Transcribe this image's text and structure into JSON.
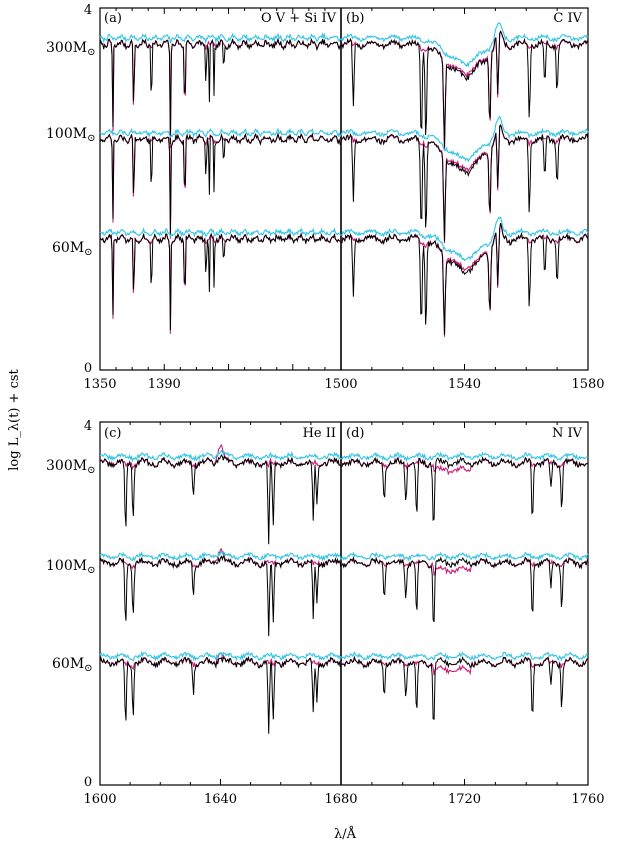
{
  "ylabel": "log L_λ(t) + cst",
  "xlabel": "λ/Å",
  "colors": {
    "black": "#000000",
    "magenta": "#cc1f7a",
    "cyan": "#2ec4e6"
  },
  "rows": [
    {
      "ylim": [
        0,
        4
      ],
      "ytick_top": "4",
      "ytick_bottom": "0",
      "mass_labels": [
        {
          "text": "300M",
          "sym": "⊙",
          "y": 3.55
        },
        {
          "text": "100M",
          "sym": "⊙",
          "y": 2.5
        },
        {
          "text": "60M",
          "sym": "⊙",
          "y": 1.4
        }
      ]
    },
    {
      "ylim": [
        0,
        4
      ],
      "ytick_top": "4",
      "ytick_bottom": "0",
      "mass_labels": [
        {
          "text": "300M",
          "sym": "⊙",
          "y": 3.55
        },
        {
          "text": "100M",
          "sym": "⊙",
          "y": 2.45
        },
        {
          "text": "60M",
          "sym": "⊙",
          "y": 1.35
        }
      ]
    }
  ],
  "chart_data": [
    {
      "type": "line",
      "panel": "a",
      "panel_label": "(a)",
      "ion_label": "O V + Si IV",
      "xlim": [
        1350,
        1500
      ],
      "ylim": [
        0,
        4
      ],
      "xticks": [
        1350,
        1390
      ],
      "xtick_labels": [
        "1350",
        "1390"
      ],
      "levels": [
        3.6,
        2.55,
        1.45
      ],
      "lines": [
        {
          "x": 1358,
          "depth": 0.8,
          "series": "black"
        },
        {
          "x": 1371,
          "depth": 0.85,
          "series": "black"
        },
        {
          "x": 1382,
          "depth": 0.75,
          "series": "black"
        },
        {
          "x": 1393.8,
          "depth": 0.9,
          "series": "black"
        },
        {
          "x": 1402.8,
          "depth": 0.85,
          "series": "black"
        },
        {
          "x": 1416,
          "depth": 0.45,
          "series": "black"
        },
        {
          "x": 1418,
          "depth": 0.6,
          "series": "black"
        },
        {
          "x": 1421,
          "depth": 0.5,
          "series": "black"
        },
        {
          "x": 1427,
          "depth": 0.35,
          "series": "black"
        }
      ],
      "magenta_lines": [
        1358,
        1371,
        1393.8,
        1402.8
      ],
      "series": [
        {
          "name": "black",
          "color": "black"
        },
        {
          "name": "magenta",
          "color": "magenta"
        },
        {
          "name": "cyan",
          "color": "cyan"
        }
      ]
    },
    {
      "type": "line",
      "panel": "b",
      "panel_label": "(b)",
      "ion_label": "C IV",
      "xlim": [
        1500,
        1580
      ],
      "ylim": [
        0,
        4
      ],
      "xticks": [
        1500,
        1540,
        1580
      ],
      "xtick_labels": [
        "1500",
        "1540",
        "1580"
      ],
      "levels": [
        3.6,
        2.55,
        1.45
      ],
      "lines": [
        {
          "x": 1504,
          "depth": 0.6,
          "series": "black"
        },
        {
          "x": 1526,
          "depth": 0.9,
          "series": "black"
        },
        {
          "x": 1527.5,
          "depth": 0.9,
          "series": "black"
        },
        {
          "x": 1533.5,
          "depth": 0.8,
          "series": "black"
        },
        {
          "x": 1548.2,
          "depth": 0.65,
          "series": "black"
        },
        {
          "x": 1550.8,
          "depth": 0.6,
          "series": "black"
        },
        {
          "x": 1561,
          "depth": 0.7,
          "series": "black"
        },
        {
          "x": 1566,
          "depth": 0.4,
          "series": "black"
        },
        {
          "x": 1570,
          "depth": 0.45,
          "series": "black"
        }
      ],
      "magenta_lines": [
        1533.5,
        1548.2,
        1550.8
      ],
      "series": [
        {
          "name": "black",
          "color": "black"
        },
        {
          "name": "magenta",
          "color": "magenta"
        },
        {
          "name": "cyan",
          "color": "cyan"
        }
      ]
    },
    {
      "type": "line",
      "panel": "c",
      "panel_label": "(c)",
      "ion_label": "He II",
      "xlim": [
        1600,
        1680
      ],
      "ylim": [
        0,
        4
      ],
      "xticks": [
        1600,
        1640
      ],
      "xtick_labels": [
        "1600",
        "1640"
      ],
      "levels": [
        3.55,
        2.45,
        1.35
      ],
      "lines": [
        {
          "x": 1608.5,
          "depth": 0.65,
          "series": "black"
        },
        {
          "x": 1611,
          "depth": 0.5,
          "series": "black"
        },
        {
          "x": 1631,
          "depth": 0.3,
          "series": "black"
        },
        {
          "x": 1656,
          "depth": 0.75,
          "series": "black"
        },
        {
          "x": 1657.5,
          "depth": 0.6,
          "series": "black"
        },
        {
          "x": 1670.8,
          "depth": 0.55,
          "series": "black"
        },
        {
          "x": 1672,
          "depth": 0.4,
          "series": "black"
        }
      ],
      "magenta_lines": [],
      "series": [
        {
          "name": "black",
          "color": "black"
        },
        {
          "name": "magenta",
          "color": "magenta"
        },
        {
          "name": "cyan",
          "color": "cyan"
        }
      ]
    },
    {
      "type": "line",
      "panel": "d",
      "panel_label": "(d)",
      "ion_label": "N IV",
      "xlim": [
        1680,
        1760
      ],
      "ylim": [
        0,
        4
      ],
      "xticks": [
        1680,
        1720,
        1760
      ],
      "xtick_labels": [
        "1680",
        "1720",
        "1760"
      ],
      "levels": [
        3.55,
        2.45,
        1.35
      ],
      "lines": [
        {
          "x": 1694,
          "depth": 0.35,
          "series": "black"
        },
        {
          "x": 1701,
          "depth": 0.35,
          "series": "black"
        },
        {
          "x": 1704.5,
          "depth": 0.55,
          "series": "black"
        },
        {
          "x": 1710,
          "depth": 0.65,
          "series": "black"
        },
        {
          "x": 1742,
          "depth": 0.55,
          "series": "black"
        },
        {
          "x": 1748,
          "depth": 0.25,
          "series": "black"
        },
        {
          "x": 1751.5,
          "depth": 0.45,
          "series": "black"
        }
      ],
      "magenta_lines": [
        1718
      ],
      "series": [
        {
          "name": "black",
          "color": "black"
        },
        {
          "name": "magenta",
          "color": "magenta"
        },
        {
          "name": "cyan",
          "color": "cyan"
        }
      ]
    }
  ]
}
